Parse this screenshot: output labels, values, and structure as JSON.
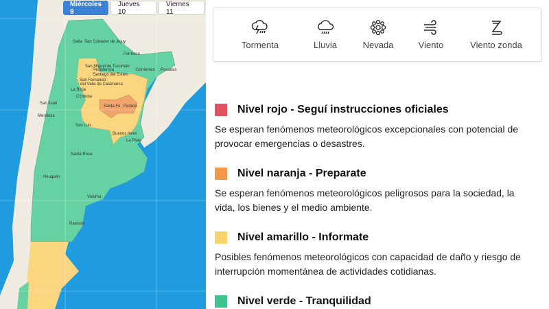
{
  "day_tabs": [
    {
      "label": "Miércoles 9",
      "active": true
    },
    {
      "label": "Jueves 10",
      "active": false
    },
    {
      "label": "Viernes 11",
      "active": false
    }
  ],
  "map": {
    "cities": [
      "Salta",
      "San Salvador de Jujuy",
      "Formosa",
      "San Miguel de Tucumán",
      "Resistencia",
      "Corrientes",
      "Posadas",
      "Santiago del Estero",
      "San Fernando",
      "del Valle de Catamarca",
      "La Rioja",
      "Córdoba",
      "San Juan",
      "Mendoza",
      "San Luis",
      "Santa Fe",
      "Paraná",
      "Buenos Aires",
      "La Plata",
      "Santa Rosa",
      "Neuquén",
      "Viedma",
      "Rawson"
    ],
    "colors": {
      "ocean": "#1f9be0",
      "land": "#efebe0",
      "green": "#66d1a3",
      "yellow": "#f9d67f",
      "orange": "#f0a56c"
    }
  },
  "phenomena": [
    {
      "label": "Tormenta",
      "icon": "storm-icon"
    },
    {
      "label": "Lluvia",
      "icon": "rain-icon"
    },
    {
      "label": "Nevada",
      "icon": "snow-icon"
    },
    {
      "label": "Viento",
      "icon": "wind-icon"
    },
    {
      "label": "Viento zonda",
      "icon": "zonda-icon"
    }
  ],
  "levels": [
    {
      "title": "Nivel rojo - Seguí instrucciones oficiales",
      "desc": "Se esperan fenómenos meteorológicos excepcionales con potencial de provocar emergencias o desastres.",
      "color": "#e0525e"
    },
    {
      "title": "Nivel naranja - Preparate",
      "desc": "Se esperan fenómenos meteorológicos peligrosos para la sociedad, la vida, los bienes y el medio ambiente.",
      "color": "#f39a4a"
    },
    {
      "title": "Nivel amarillo - Informate",
      "desc": "Posibles fenómenos meteorológicos con capacidad de daño y riesgo de interrupción momentánea de actividades cotidianas.",
      "color": "#fad36b"
    },
    {
      "title": "Nivel verde - Tranquilidad",
      "desc": "",
      "color": "#3ec48e"
    }
  ]
}
